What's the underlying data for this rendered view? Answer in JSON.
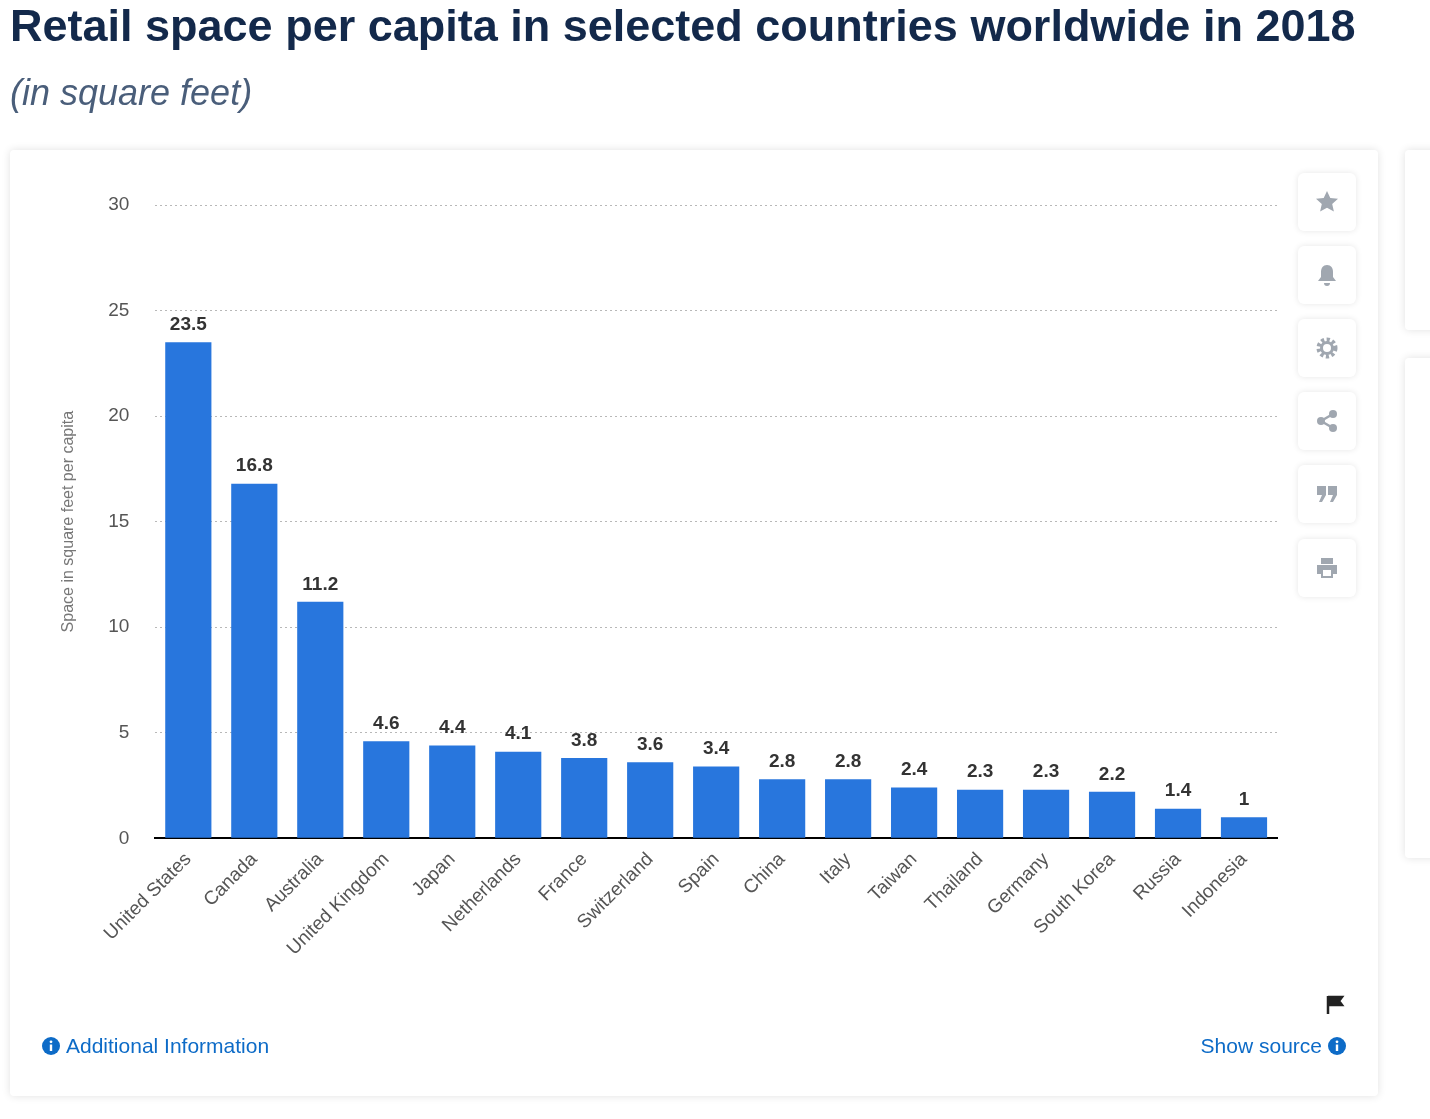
{
  "chart_data": {
    "type": "bar",
    "title": "Retail space per capita in selected countries worldwide in 2018",
    "subtitle": "(in square feet)",
    "ylabel": "Space in square feet per capita",
    "categories": [
      "United States",
      "Canada",
      "Australia",
      "United Kingdom",
      "Japan",
      "Netherlands",
      "France",
      "Switzerland",
      "Spain",
      "China",
      "Italy",
      "Taiwan",
      "Thailand",
      "Germany",
      "South Korea",
      "Russia",
      "Indonesia"
    ],
    "values": [
      23.5,
      16.8,
      11.2,
      4.6,
      4.4,
      4.1,
      3.8,
      3.6,
      3.4,
      2.8,
      2.8,
      2.4,
      2.3,
      2.3,
      2.2,
      1.4,
      1
    ],
    "color": "#2876dd",
    "ylim": [
      0,
      30
    ],
    "yticks": [
      0,
      5,
      10,
      15,
      20,
      25,
      30
    ],
    "grid": "y",
    "data_labels": true,
    "annotations": [
      "Additional Information",
      "Show source"
    ]
  }
}
